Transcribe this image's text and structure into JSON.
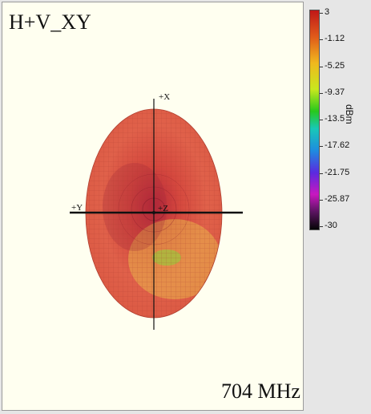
{
  "plot": {
    "title": "H+V_XY",
    "frequency": "704 MHz",
    "axes": {
      "x_pos": "+X",
      "y_neg": "+Y",
      "z": "+Z"
    }
  },
  "legend": {
    "unit": "dBm",
    "ticks": [
      "3",
      "-1.12",
      "-5.25",
      "-9.37",
      "-13.5",
      "-17.62",
      "-21.75",
      "-25.87",
      "-30"
    ]
  }
}
